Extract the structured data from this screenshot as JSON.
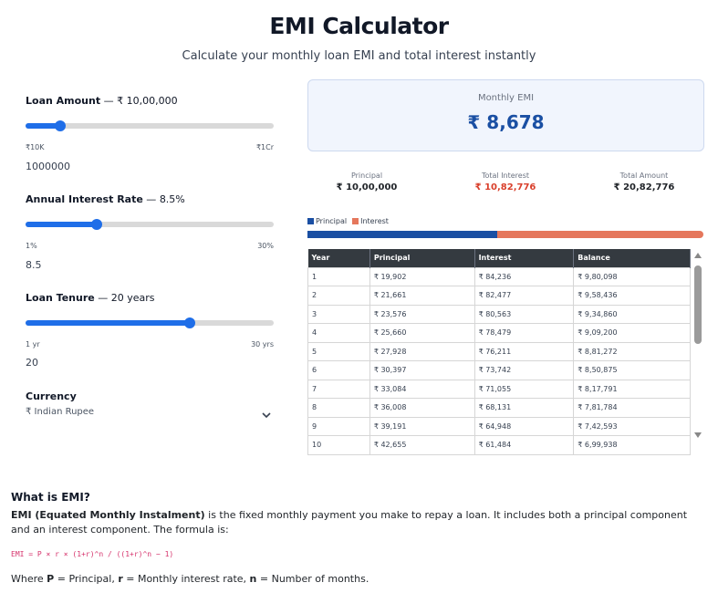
{
  "header": {
    "title": "EMI Calculator",
    "subtitle": "Calculate your monthly loan EMI and total interest instantly"
  },
  "controls": {
    "loan": {
      "label": "Loan Amount",
      "sep": " — ",
      "display": "₹ 10,00,000",
      "min": "₹10K",
      "max": "₹1Cr",
      "value": "1000000",
      "fraction": 0.14
    },
    "rate": {
      "label": "Annual Interest Rate",
      "sep": " — ",
      "display": "8.5%",
      "min": "1%",
      "max": "30%",
      "value": "8.5",
      "fraction": 0.286
    },
    "tenure": {
      "label": "Loan Tenure",
      "sep": " — ",
      "display": "20 years",
      "min": "1 yr",
      "max": "30 yrs",
      "value": "20",
      "fraction": 0.66
    },
    "currency": {
      "label": "Currency",
      "selected": "₹ Indian Rupee",
      "icon": "chevron-down-icon"
    }
  },
  "result": {
    "emi_label": "Monthly EMI",
    "emi_value": "₹ 8,678",
    "principal_label": "Principal",
    "principal_value": "₹ 10,00,000",
    "interest_label": "Total Interest",
    "interest_value": "₹ 10,82,776",
    "total_label": "Total Amount",
    "total_value": "₹ 20,82,776",
    "legend_principal": "Principal",
    "legend_interest": "Interest",
    "principal_share": 0.48
  },
  "colors": {
    "accent": "#1f6ee8",
    "principal": "#1a4fa3",
    "interest": "#e5775c",
    "header_dark": "#343a40"
  },
  "schedule": {
    "headers": [
      "Year",
      "Principal",
      "Interest",
      "Balance"
    ],
    "rows": [
      [
        "1",
        "₹ 19,902",
        "₹ 84,236",
        "₹ 9,80,098"
      ],
      [
        "2",
        "₹ 21,661",
        "₹ 82,477",
        "₹ 9,58,436"
      ],
      [
        "3",
        "₹ 23,576",
        "₹ 80,563",
        "₹ 9,34,860"
      ],
      [
        "4",
        "₹ 25,660",
        "₹ 78,479",
        "₹ 9,09,200"
      ],
      [
        "5",
        "₹ 27,928",
        "₹ 76,211",
        "₹ 8,81,272"
      ],
      [
        "6",
        "₹ 30,397",
        "₹ 73,742",
        "₹ 8,50,875"
      ],
      [
        "7",
        "₹ 33,084",
        "₹ 71,055",
        "₹ 8,17,791"
      ],
      [
        "8",
        "₹ 36,008",
        "₹ 68,131",
        "₹ 7,81,784"
      ],
      [
        "9",
        "₹ 39,191",
        "₹ 64,948",
        "₹ 7,42,593"
      ],
      [
        "10",
        "₹ 42,655",
        "₹ 61,484",
        "₹ 6,99,938"
      ]
    ]
  },
  "info": {
    "title": "What is EMI?",
    "term": "EMI (Equated Monthly Instalment)",
    "body": " is the fixed monthly payment you make to repay a loan. It includes both a principal component and an interest component. The formula is:",
    "formula": "EMI = P × r × (1+r)^n / ((1+r)^n − 1)",
    "where_prefix": "Where ",
    "p_sym": "P",
    "p_def": " = Principal, ",
    "r_sym": "r",
    "r_def": " = Monthly interest rate, ",
    "n_sym": "n",
    "n_def": " = Number of months."
  }
}
